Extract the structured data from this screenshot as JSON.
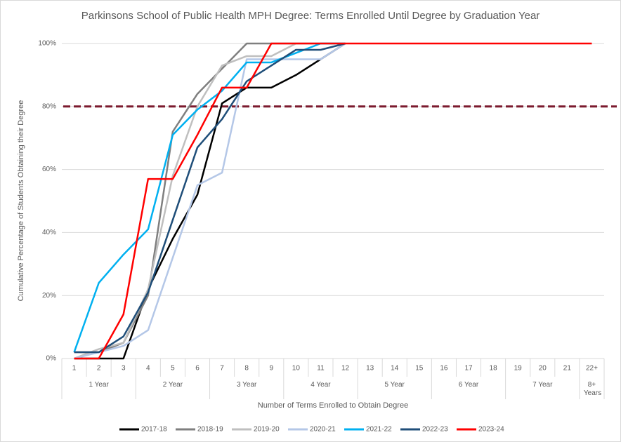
{
  "chart_data": {
    "type": "line",
    "title": "Parkinsons School of Public Health MPH Degree: Terms Enrolled Until Degree by Graduation Year",
    "x_label": "Number of Terms Enrolled to Obtain Degree",
    "y_label": "Cumulative Percentage of Students Obtaining their Degree",
    "categories": [
      "1",
      "2",
      "3",
      "4",
      "5",
      "6",
      "7",
      "8",
      "9",
      "10",
      "11",
      "12",
      "13",
      "14",
      "15",
      "16",
      "17",
      "18",
      "19",
      "20",
      "21",
      "22+"
    ],
    "category_groups": [
      "1 Year",
      "2 Year",
      "3 Year",
      "4 Year",
      "5 Year",
      "6 Year",
      "7 Year",
      "8+ Years"
    ],
    "ylim": [
      0,
      100
    ],
    "yticks": [
      {
        "value": 0,
        "label": "0%"
      },
      {
        "value": 20,
        "label": "20%"
      },
      {
        "value": 40,
        "label": "40%"
      },
      {
        "value": 60,
        "label": "60%"
      },
      {
        "value": 80,
        "label": "80%"
      },
      {
        "value": 100,
        "label": "100%"
      }
    ],
    "grid": true,
    "legend": "bottom",
    "reference_line": {
      "value": 80,
      "color": "#7b1a2e"
    },
    "series": [
      {
        "name": "2017-18",
        "color": "#000000",
        "values": [
          0,
          0,
          0,
          22,
          38,
          52,
          81,
          86,
          86,
          90,
          95,
          100,
          null,
          null,
          null,
          null,
          null,
          null,
          null,
          null,
          null,
          null
        ]
      },
      {
        "name": "2018-19",
        "color": "#7f7f7f",
        "values": [
          2,
          2,
          5,
          20,
          72,
          84,
          92,
          100,
          100,
          100,
          100,
          100,
          null,
          null,
          null,
          null,
          null,
          null,
          null,
          null,
          null,
          null
        ]
      },
      {
        "name": "2019-20",
        "color": "#bfbfbf",
        "values": [
          0,
          3,
          5,
          22,
          58,
          80,
          93,
          96,
          96,
          100,
          100,
          100,
          null,
          null,
          null,
          null,
          null,
          null,
          null,
          null,
          null,
          null
        ]
      },
      {
        "name": "2020-21",
        "color": "#b4c7e7",
        "values": [
          0,
          2,
          4,
          9,
          32,
          55,
          59,
          95,
          95,
          95,
          95,
          100,
          null,
          null,
          null,
          null,
          null,
          null,
          null,
          null,
          null,
          null
        ]
      },
      {
        "name": "2021-22",
        "color": "#00b0f0",
        "values": [
          2,
          24,
          33,
          41,
          71,
          79,
          85,
          94,
          94,
          97,
          100,
          100,
          null,
          null,
          null,
          null,
          null,
          null,
          null,
          null,
          null,
          null
        ]
      },
      {
        "name": "2022-23",
        "color": "#1f4e79",
        "values": [
          2,
          2,
          7,
          21,
          44,
          67,
          76,
          88,
          93,
          98,
          98,
          100,
          null,
          null,
          null,
          null,
          null,
          null,
          null,
          null,
          null,
          null
        ]
      },
      {
        "name": "2023-24",
        "color": "#ff0000",
        "values": [
          0,
          0,
          14,
          57,
          57,
          71,
          86,
          86,
          100,
          100,
          100,
          100,
          100,
          100,
          100,
          100,
          100,
          100,
          100,
          100,
          100,
          100
        ]
      }
    ]
  }
}
